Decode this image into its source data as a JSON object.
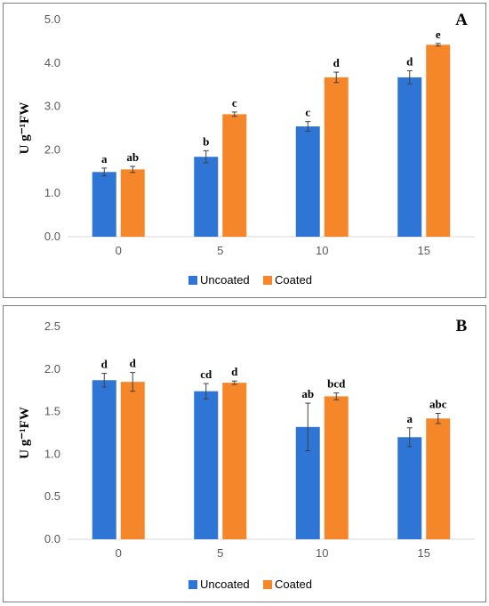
{
  "colors": {
    "uncoated": "#2e75d6",
    "coated": "#f6862a",
    "axis": "#d9d9d9",
    "error": "#404040"
  },
  "chart_data": [
    {
      "panel_label": "A",
      "type": "bar",
      "ylabel": "U g⁻¹FW",
      "xlabel": "",
      "categories": [
        "0",
        "5",
        "10",
        "15"
      ],
      "ylim": [
        0,
        5
      ],
      "yticks": [
        "0.0",
        "1.0",
        "2.0",
        "3.0",
        "4.0",
        "5.0"
      ],
      "grid": false,
      "legend_position": "bottom",
      "series": [
        {
          "name": "Uncoated",
          "values": [
            1.49,
            1.84,
            2.54,
            3.67
          ],
          "errors": [
            0.09,
            0.14,
            0.11,
            0.15
          ],
          "letters": [
            "a",
            "b",
            "c",
            "d"
          ]
        },
        {
          "name": "Coated",
          "values": [
            1.55,
            2.82,
            3.67,
            4.42
          ],
          "errors": [
            0.07,
            0.05,
            0.12,
            0.03
          ],
          "letters": [
            "ab",
            "c",
            "d",
            "e"
          ]
        }
      ]
    },
    {
      "panel_label": "B",
      "type": "bar",
      "ylabel": "U g⁻¹FW",
      "xlabel": "",
      "categories": [
        "0",
        "5",
        "10",
        "15"
      ],
      "ylim": [
        0,
        2.5
      ],
      "yticks": [
        "0.0",
        "0.5",
        "1.0",
        "1.5",
        "2.0",
        "2.5"
      ],
      "grid": false,
      "legend_position": "bottom",
      "series": [
        {
          "name": "Uncoated",
          "values": [
            1.87,
            1.74,
            1.32,
            1.2
          ],
          "errors": [
            0.08,
            0.09,
            0.28,
            0.11
          ],
          "letters": [
            "d",
            "cd",
            "ab",
            "a"
          ]
        },
        {
          "name": "Coated",
          "values": [
            1.85,
            1.84,
            1.68,
            1.42
          ],
          "errors": [
            0.11,
            0.02,
            0.04,
            0.06
          ],
          "letters": [
            "d",
            "d",
            "bcd",
            "abc"
          ]
        }
      ]
    }
  ]
}
